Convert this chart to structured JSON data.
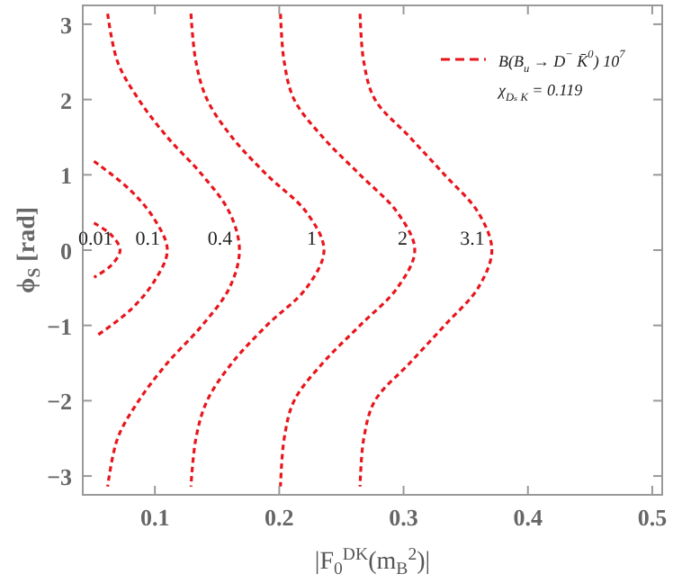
{
  "chart_data": {
    "type": "line",
    "xlabel": "|F$_{0}$$^{DK}$(m$_{B}$$^{2}$)|",
    "ylabel": "ϕ$_{S}$ [rad]",
    "xlim": [
      0.042,
      0.508
    ],
    "ylim": [
      -3.25,
      3.25
    ],
    "xticks": [
      0.1,
      0.2,
      0.3,
      0.4,
      0.5
    ],
    "yticks": [
      -3,
      -2,
      -1,
      0,
      1,
      2,
      3
    ],
    "grid": false,
    "legend": "top right",
    "line_style": "dashed",
    "marker": "none",
    "series": [
      {
        "name": "B(B$_{u}$ → D$^{−}$ K̄$^{0}$) 10$^{7}$",
        "color": "#e8161c",
        "x": [
          0.051,
          0.065,
          0.072,
          0.065,
          0.051
        ],
        "values": [
          0.36,
          0.2,
          0,
          -0.2,
          -0.36
        ]
      },
      {
        "color": "#e8161c",
        "x": [
          0.051,
          0.08,
          0.1,
          0.11,
          0.1,
          0.08,
          0.052
        ],
        "values": [
          1.18,
          0.8,
          0.4,
          0,
          -0.4,
          -0.8,
          -1.15
        ]
      },
      {
        "color": "#e8161c",
        "x": [
          0.062,
          0.07,
          0.087,
          0.11,
          0.138,
          0.16,
          0.168,
          0.16,
          0.138,
          0.11,
          0.087,
          0.07,
          0.062
        ],
        "values": [
          3.14,
          2.5,
          2,
          1.5,
          1,
          0.5,
          0,
          -0.5,
          -1,
          -1.5,
          -2,
          -2.5,
          -3.14
        ]
      },
      {
        "color": "#e8161c",
        "x": [
          0.129,
          0.133,
          0.142,
          0.162,
          0.19,
          0.222,
          0.236,
          0.222,
          0.19,
          0.162,
          0.142,
          0.133,
          0.129
        ],
        "values": [
          3.14,
          2.5,
          2,
          1.5,
          1,
          0.5,
          0,
          -0.5,
          -1,
          -1.5,
          -2,
          -2.5,
          -3.14
        ]
      },
      {
        "color": "#e8161c",
        "x": [
          0.201,
          0.204,
          0.212,
          0.235,
          0.265,
          0.295,
          0.309,
          0.295,
          0.265,
          0.235,
          0.212,
          0.204,
          0.201
        ],
        "values": [
          3.14,
          2.5,
          2,
          1.5,
          1,
          0.5,
          0,
          -0.5,
          -1,
          -1.5,
          -2,
          -2.5,
          -3.14
        ]
      },
      {
        "color": "#e8161c",
        "x": [
          0.265,
          0.268,
          0.277,
          0.305,
          0.333,
          0.36,
          0.371,
          0.36,
          0.333,
          0.305,
          0.277,
          0.268,
          0.265
        ],
        "values": [
          3.14,
          2.5,
          2,
          1.5,
          1,
          0.5,
          0,
          -0.5,
          -1,
          -1.5,
          -2,
          -2.5,
          -3.14
        ]
      }
    ],
    "annotations": [
      "χ$_{Dₛ K}$ = 0.119",
      {
        "text": "0.01",
        "x": 0.072,
        "y": 0
      },
      {
        "text": "0.1",
        "x": 0.11,
        "y": 0
      },
      {
        "text": "0.4",
        "x": 0.168,
        "y": 0
      },
      {
        "text": "1",
        "x": 0.236,
        "y": 0
      },
      {
        "text": "2",
        "x": 0.309,
        "y": 0
      },
      {
        "text": "3.1",
        "x": 0.371,
        "y": 0
      }
    ]
  }
}
